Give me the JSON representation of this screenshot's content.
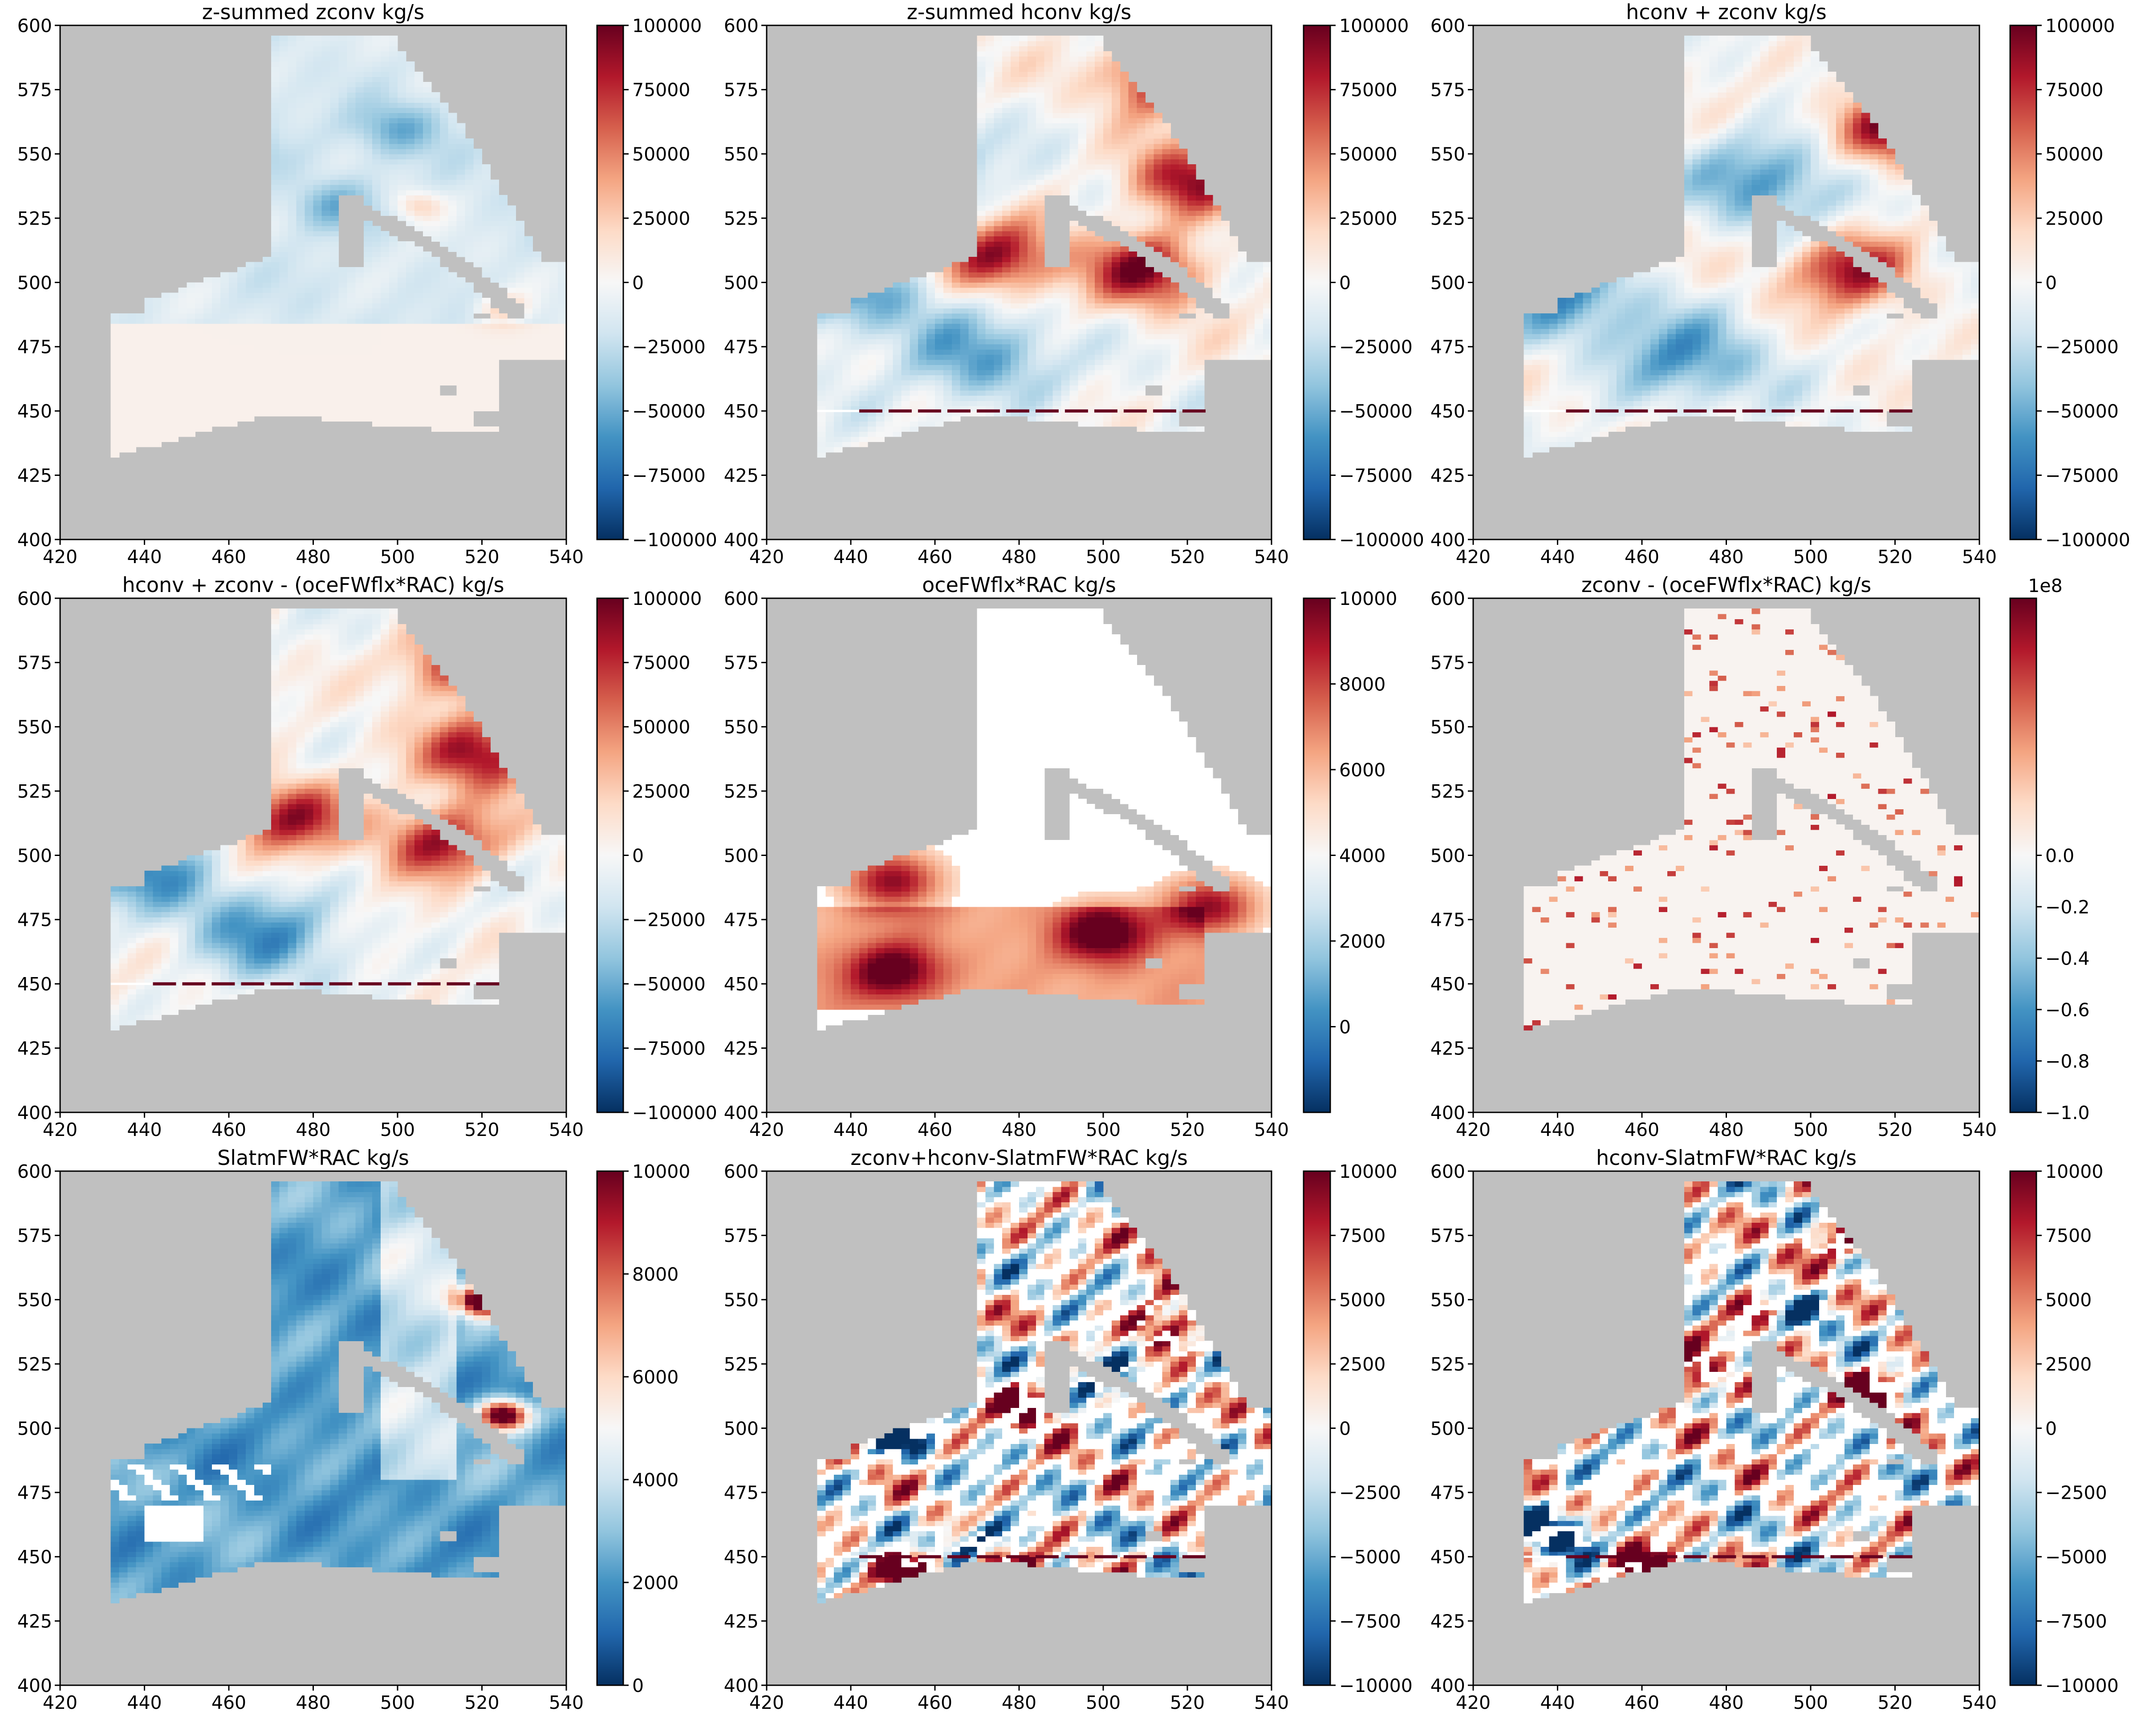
{
  "chart_data": [
    {
      "type": "heatmap",
      "title": "z-summed zconv kg/s",
      "xlabel": "",
      "ylabel": "",
      "xlim": [
        420,
        540
      ],
      "ylim": [
        400,
        600
      ],
      "xticks": [
        "420",
        "440",
        "460",
        "480",
        "500",
        "520",
        "540"
      ],
      "yticks": [
        "400",
        "425",
        "450",
        "475",
        "500",
        "525",
        "550",
        "575",
        "600"
      ],
      "colormap": "RdBu_r",
      "colorbar": {
        "vmin": -100000,
        "vmax": 100000,
        "offset_label": "",
        "ticks": [
          "−100000",
          "−75000",
          "−50000",
          "−25000",
          "0",
          "25000",
          "50000",
          "75000",
          "100000"
        ]
      },
      "field": "weak",
      "pattern": {
        "hot": [
          [
            505,
            530
          ],
          [
            525,
            490
          ]
        ],
        "cold": [
          [
            485,
            530
          ],
          [
            500,
            560
          ],
          [
            460,
            550
          ]
        ],
        "line450": false
      }
    },
    {
      "type": "heatmap",
      "title": "z-summed hconv kg/s",
      "xlabel": "",
      "ylabel": "",
      "xlim": [
        420,
        540
      ],
      "ylim": [
        400,
        600
      ],
      "xticks": [
        "420",
        "440",
        "460",
        "480",
        "500",
        "520",
        "540"
      ],
      "yticks": [
        "400",
        "425",
        "450",
        "475",
        "500",
        "525",
        "550",
        "575",
        "600"
      ],
      "colormap": "RdBu_r",
      "colorbar": {
        "vmin": -100000,
        "vmax": 100000,
        "offset_label": "",
        "ticks": [
          "−100000",
          "−75000",
          "−50000",
          "−25000",
          "0",
          "25000",
          "50000",
          "75000",
          "100000"
        ]
      },
      "field": "hconv",
      "pattern": {
        "hot": [
          [
            515,
            580
          ],
          [
            520,
            540
          ],
          [
            510,
            505
          ],
          [
            475,
            510
          ]
        ],
        "cold": [
          [
            440,
            495
          ],
          [
            470,
            470
          ],
          [
            455,
            540
          ]
        ],
        "line450": true
      }
    },
    {
      "type": "heatmap",
      "title": "hconv + zconv kg/s",
      "xlabel": "",
      "ylabel": "",
      "xlim": [
        420,
        540
      ],
      "ylim": [
        400,
        600
      ],
      "xticks": [
        "420",
        "440",
        "460",
        "480",
        "500",
        "520",
        "540"
      ],
      "yticks": [
        "400",
        "425",
        "450",
        "475",
        "500",
        "525",
        "550",
        "575",
        "600"
      ],
      "colormap": "RdBu_r",
      "colorbar": {
        "vmin": -100000,
        "vmax": 100000,
        "offset_label": "",
        "ticks": [
          "−100000",
          "−75000",
          "−50000",
          "−25000",
          "0",
          "25000",
          "50000",
          "75000",
          "100000"
        ]
      },
      "field": "hconv",
      "pattern": {
        "hot": [
          [
            520,
            560
          ],
          [
            510,
            505
          ]
        ],
        "cold": [
          [
            440,
            495
          ],
          [
            470,
            470
          ],
          [
            490,
            540
          ]
        ],
        "line450": true
      }
    },
    {
      "type": "heatmap",
      "title": "hconv + zconv - (oceFWflx*RAC) kg/s",
      "xlabel": "",
      "ylabel": "",
      "xlim": [
        420,
        540
      ],
      "ylim": [
        400,
        600
      ],
      "xticks": [
        "420",
        "440",
        "460",
        "480",
        "500",
        "520",
        "540"
      ],
      "yticks": [
        "400",
        "425",
        "450",
        "475",
        "500",
        "525",
        "550",
        "575",
        "600"
      ],
      "colormap": "RdBu_r",
      "colorbar": {
        "vmin": -100000,
        "vmax": 100000,
        "offset_label": "",
        "ticks": [
          "−100000",
          "−75000",
          "−50000",
          "−25000",
          "0",
          "25000",
          "50000",
          "75000",
          "100000"
        ]
      },
      "field": "hconv",
      "pattern": {
        "hot": [
          [
            515,
            575
          ],
          [
            520,
            540
          ],
          [
            510,
            505
          ],
          [
            475,
            515
          ]
        ],
        "cold": [
          [
            440,
            495
          ],
          [
            470,
            470
          ]
        ],
        "line450": true
      }
    },
    {
      "type": "heatmap",
      "title": "oceFWflx*RAC kg/s",
      "xlabel": "",
      "ylabel": "",
      "xlim": [
        420,
        540
      ],
      "ylim": [
        400,
        600
      ],
      "xticks": [
        "420",
        "440",
        "460",
        "480",
        "500",
        "520",
        "540"
      ],
      "yticks": [
        "400",
        "425",
        "450",
        "475",
        "500",
        "525",
        "550",
        "575",
        "600"
      ],
      "colormap": "RdBu_r",
      "colorbar": {
        "vmin": -2000,
        "vmax": 10000,
        "offset_label": "",
        "ticks": [
          "0",
          "2000",
          "4000",
          "6000",
          "8000",
          "10000"
        ]
      },
      "field": "oceflux",
      "pattern": {
        "hot": [
          [
            450,
            490
          ],
          [
            525,
            480
          ],
          [
            500,
            470
          ],
          [
            450,
            455
          ]
        ],
        "cold": [],
        "line450": false
      }
    },
    {
      "type": "heatmap",
      "title": "zconv - (oceFWflx*RAC) kg/s",
      "xlabel": "",
      "ylabel": "",
      "xlim": [
        420,
        540
      ],
      "ylim": [
        400,
        600
      ],
      "xticks": [
        "420",
        "440",
        "460",
        "480",
        "500",
        "520",
        "540"
      ],
      "yticks": [
        "400",
        "425",
        "450",
        "475",
        "500",
        "525",
        "550",
        "575",
        "600"
      ],
      "colormap": "RdBu_r",
      "colorbar": {
        "vmin": -1.0,
        "vmax": 1.0,
        "offset_label": "1e8",
        "ticks": [
          "−1.0",
          "−0.8",
          "−0.6",
          "−0.4",
          "−0.2",
          "0.0"
        ]
      },
      "field": "speckle",
      "pattern": {
        "hot": [],
        "cold": [],
        "line450": false
      }
    },
    {
      "type": "heatmap",
      "title": "SlatmFW*RAC kg/s",
      "xlabel": "",
      "ylabel": "",
      "xlim": [
        420,
        540
      ],
      "ylim": [
        400,
        600
      ],
      "xticks": [
        "420",
        "440",
        "460",
        "480",
        "500",
        "520",
        "540"
      ],
      "yticks": [
        "400",
        "425",
        "450",
        "475",
        "500",
        "525",
        "550",
        "575",
        "600"
      ],
      "colormap": "RdBu_r",
      "colorbar": {
        "vmin": 0,
        "vmax": 10000,
        "offset_label": "",
        "ticks": [
          "0",
          "2000",
          "4000",
          "6000",
          "8000",
          "10000"
        ]
      },
      "field": "slatm",
      "pattern": {
        "hot": [
          [
            520,
            550
          ],
          [
            525,
            505
          ]
        ],
        "cold": [],
        "line450": false
      }
    },
    {
      "type": "heatmap",
      "title": "zconv+hconv-SlatmFW*RAC kg/s",
      "xlabel": "",
      "ylabel": "",
      "xlim": [
        420,
        540
      ],
      "ylim": [
        400,
        600
      ],
      "xticks": [
        "420",
        "440",
        "460",
        "480",
        "500",
        "520",
        "540"
      ],
      "yticks": [
        "400",
        "425",
        "450",
        "475",
        "500",
        "525",
        "550",
        "575",
        "600"
      ],
      "colormap": "RdBu_r",
      "colorbar": {
        "vmin": -10000,
        "vmax": 10000,
        "offset_label": "",
        "ticks": [
          "−10000",
          "−7500",
          "−5000",
          "−2500",
          "0",
          "2500",
          "5000",
          "7500",
          "10000"
        ]
      },
      "field": "residual",
      "pattern": {
        "hot": [
          [
            520,
            575
          ],
          [
            515,
            540
          ],
          [
            485,
            510
          ],
          [
            475,
            445
          ],
          [
            455,
            445
          ]
        ],
        "cold": [
          [
            500,
            520
          ],
          [
            450,
            500
          ],
          [
            470,
            455
          ]
        ],
        "line450": true
      }
    },
    {
      "type": "heatmap",
      "title": "hconv-SlatmFW*RAC kg/s",
      "xlabel": "",
      "ylabel": "",
      "xlim": [
        420,
        540
      ],
      "ylim": [
        400,
        600
      ],
      "xticks": [
        "420",
        "440",
        "460",
        "480",
        "500",
        "520",
        "540"
      ],
      "yticks": [
        "400",
        "425",
        "450",
        "475",
        "500",
        "525",
        "550",
        "575",
        "600"
      ],
      "colormap": "RdBu_r",
      "colorbar": {
        "vmin": -10000,
        "vmax": 10000,
        "offset_label": "",
        "ticks": [
          "−10000",
          "−7500",
          "−5000",
          "−2500",
          "0",
          "2500",
          "5000",
          "7500",
          "10000"
        ]
      },
      "field": "residual",
      "pattern": {
        "hot": [
          [
            510,
            575
          ],
          [
            470,
            520
          ],
          [
            515,
            515
          ],
          [
            490,
            545
          ],
          [
            460,
            445
          ]
        ],
        "cold": [
          [
            495,
            545
          ],
          [
            440,
            460
          ]
        ],
        "line450": true
      }
    }
  ]
}
